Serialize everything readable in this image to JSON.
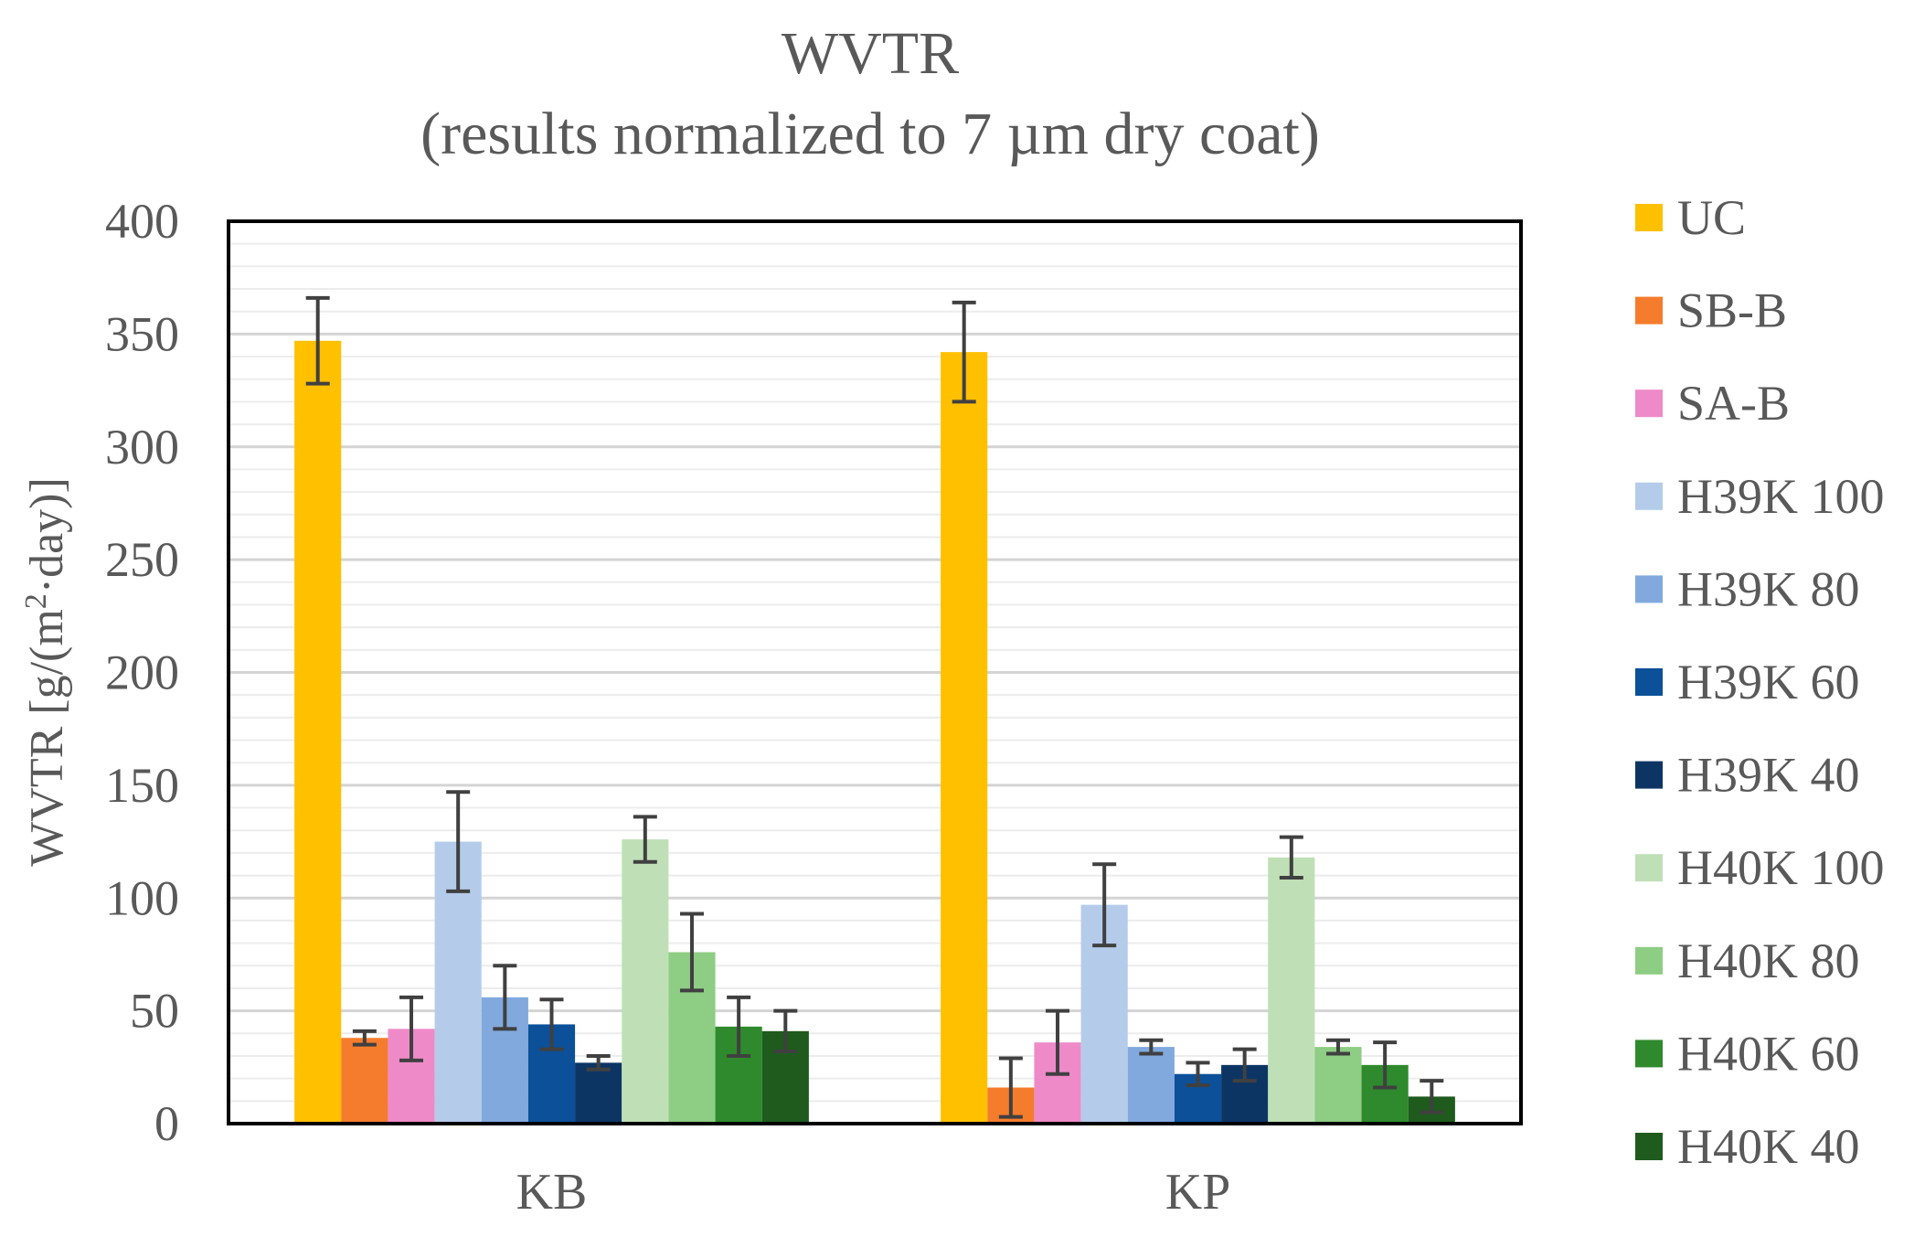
{
  "chart_data": {
    "type": "bar",
    "title": "WVTR",
    "subtitle": "(results normalized to 7 µm dry coat)",
    "ylabel_main": "WVTR [g/(m",
    "ylabel_sup": "2",
    "ylabel_tail": "·day)]",
    "xlabel": "",
    "ylim": [
      0,
      400
    ],
    "yticks": [
      "0",
      "50",
      "100",
      "150",
      "200",
      "250",
      "300",
      "350",
      "400"
    ],
    "categories": [
      "KB",
      "KP"
    ],
    "legend_position": "right",
    "series": [
      {
        "name": "UC",
        "color": "#FFC000",
        "values": [
          347,
          342
        ],
        "errors": [
          19,
          22
        ]
      },
      {
        "name": "SB-B",
        "color": "#F57C2C",
        "values": [
          38,
          16
        ],
        "errors": [
          3,
          13
        ]
      },
      {
        "name": "SA-B",
        "color": "#EE8AC8",
        "values": [
          42,
          36
        ],
        "errors": [
          14,
          14
        ]
      },
      {
        "name": "H39K 100",
        "color": "#B4CCEA",
        "values": [
          125,
          97
        ],
        "errors": [
          22,
          18
        ]
      },
      {
        "name": "H39K 80",
        "color": "#81A9DE",
        "values": [
          56,
          34
        ],
        "errors": [
          14,
          3
        ]
      },
      {
        "name": "H39K 60",
        "color": "#0B5099",
        "values": [
          44,
          22
        ],
        "errors": [
          11,
          5
        ]
      },
      {
        "name": "H39K 40",
        "color": "#0D3564",
        "values": [
          27,
          26
        ],
        "errors": [
          3,
          7
        ]
      },
      {
        "name": "H40K 100",
        "color": "#BFE0B6",
        "values": [
          126,
          118
        ],
        "errors": [
          10,
          9
        ]
      },
      {
        "name": "H40K 80",
        "color": "#8ECD84",
        "values": [
          76,
          34
        ],
        "errors": [
          17,
          3
        ]
      },
      {
        "name": "H40K 60",
        "color": "#2E8A2C",
        "values": [
          43,
          26
        ],
        "errors": [
          13,
          10
        ]
      },
      {
        "name": "H40K 40",
        "color": "#1E5B1D",
        "values": [
          41,
          12
        ],
        "errors": [
          9,
          7
        ]
      }
    ]
  }
}
